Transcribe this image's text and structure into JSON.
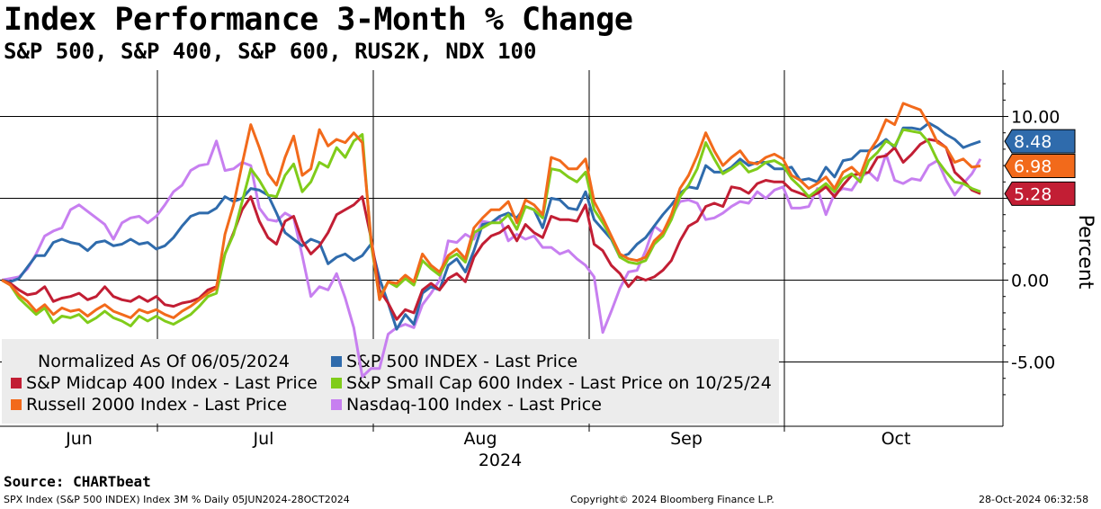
{
  "title": "Index Performance 3-Month % Change",
  "subtitle": "S&P 500, S&P 400, S&P 600, RUS2K, NDX 100",
  "source": "Source: CHARTbeat",
  "footer": {
    "left": "SPX Index (S&P 500 INDEX) Index 3M %  Daily 05JUN2024-28OCT2024",
    "mid": "Copyright© 2024 Bloomberg Finance L.P.",
    "right": "28-Oct-2024 06:32:58"
  },
  "chart_data": {
    "type": "line",
    "title": "Index Performance 3-Month % Change",
    "xlabel": "2024",
    "ylabel": "Percent",
    "ylim": [
      -8.8,
      12.7
    ],
    "yticks": [
      -5,
      0,
      5,
      10
    ],
    "ytick_labels": [
      "-5.00",
      "0.00",
      "",
      "10.00"
    ],
    "xtick_labels": [
      "Jun",
      "Jul",
      "Aug",
      "Sep",
      "Oct"
    ],
    "x_year_label": "2024",
    "grid": true,
    "legend_note": "Normalized As Of 06/05/2024",
    "legend_position": "bottom-left",
    "last_value_labels": [
      {
        "series": "S&P 500 INDEX - Last Price",
        "text": "8.48",
        "color": "#2f6bac"
      },
      {
        "series": "Russell 2000 Index - Last Price",
        "text": "6.98",
        "color": "#f26a1b"
      },
      {
        "series": "S&P Midcap 400 Index - Last Price",
        "text": "5.28",
        "color": "#c21e34"
      }
    ],
    "series": [
      {
        "name": "S&P 500 INDEX - Last Price",
        "color": "#2f6bac",
        "values": [
          0,
          -0.1,
          0.1,
          0.8,
          1.5,
          1.5,
          2.3,
          2.5,
          2.3,
          2.2,
          1.8,
          2.3,
          2.4,
          2.1,
          2.2,
          2.5,
          2.2,
          2.3,
          1.9,
          2.1,
          2.6,
          3.3,
          3.9,
          4.1,
          4.1,
          4.4,
          5.1,
          4.8,
          5.0,
          5.6,
          5.5,
          5.2,
          4.1,
          2.9,
          2.5,
          2.1,
          2.5,
          2.3,
          1.0,
          1.4,
          1.6,
          1.2,
          1.5,
          2.2,
          0.1,
          -1.4,
          -3.0,
          -2.1,
          -2.7,
          -0.8,
          -0.4,
          -0.6,
          0.9,
          1.3,
          0.5,
          1.8,
          3.4,
          3.5,
          3.9,
          4.1,
          3.8,
          4.5,
          4.3,
          3.2,
          5.0,
          4.9,
          4.4,
          4.3,
          5.4,
          3.7,
          3.1,
          2.5,
          1.4,
          1.6,
          2.2,
          2.6,
          3.3,
          4.0,
          4.6,
          5.3,
          5.7,
          5.6,
          7.0,
          6.6,
          6.6,
          6.9,
          7.4,
          7.0,
          7.2,
          7.2,
          6.8,
          6.8,
          6.9,
          6.1,
          6.2,
          6.0,
          6.9,
          6.3,
          7.3,
          7.4,
          7.9,
          7.9,
          8.2,
          8.6,
          8.1,
          9.3,
          9.3,
          9.2,
          9.6,
          9.3,
          8.9,
          8.6,
          8.1,
          8.3,
          8.48
        ]
      },
      {
        "name": "S&P Midcap 400 Index - Last Price",
        "color": "#c21e34",
        "values": [
          0,
          -0.2,
          -0.6,
          -0.9,
          -0.8,
          -0.4,
          -1.3,
          -1.1,
          -1.0,
          -0.8,
          -1.2,
          -1.0,
          -0.4,
          -1.0,
          -1.2,
          -1.3,
          -1.0,
          -1.3,
          -1.0,
          -1.5,
          -1.6,
          -1.4,
          -1.3,
          -1.1,
          -0.6,
          -0.4,
          1.6,
          2.9,
          4.3,
          5.1,
          3.6,
          2.6,
          2.2,
          3.6,
          3.9,
          2.4,
          1.6,
          2.1,
          2.9,
          4.0,
          4.3,
          4.6,
          5.1,
          2.6,
          -0.6,
          -1.4,
          -2.4,
          -1.8,
          -2.0,
          -0.6,
          -0.2,
          -0.6,
          0.1,
          0.4,
          -0.1,
          1.4,
          2.2,
          2.7,
          2.9,
          3.3,
          2.4,
          3.4,
          2.9,
          2.6,
          3.9,
          3.7,
          3.7,
          3.6,
          4.6,
          2.2,
          1.8,
          0.9,
          0.4,
          -0.4,
          0.2,
          0.0,
          0.2,
          0.6,
          1.2,
          2.4,
          3.3,
          3.6,
          4.5,
          4.7,
          4.5,
          5.7,
          5.6,
          5.3,
          5.9,
          6.1,
          6.0,
          6.0,
          5.5,
          5.3,
          5.1,
          5.3,
          5.7,
          5.1,
          5.8,
          6.4,
          6.5,
          6.6,
          7.5,
          7.6,
          8.1,
          7.2,
          7.7,
          8.3,
          8.6,
          8.5,
          8.1,
          6.6,
          6.1,
          5.5,
          5.28
        ]
      },
      {
        "name": "Russell 2000 Index - Last Price",
        "color": "#f26a1b",
        "values": [
          0,
          -0.3,
          -0.9,
          -1.3,
          -1.9,
          -1.5,
          -2.1,
          -1.7,
          -1.9,
          -1.8,
          -2.2,
          -1.8,
          -1.5,
          -1.9,
          -2.1,
          -2.3,
          -1.8,
          -2.0,
          -1.8,
          -2.1,
          -2.3,
          -1.9,
          -1.6,
          -1.2,
          -0.8,
          -0.5,
          2.8,
          4.6,
          7.1,
          9.5,
          8.1,
          6.5,
          5.8,
          7.5,
          8.8,
          6.4,
          6.8,
          9.2,
          8.2,
          8.6,
          8.4,
          9.0,
          8.4,
          2.6,
          -1.2,
          -0.1,
          -0.2,
          0.3,
          -0.1,
          1.6,
          0.9,
          0.5,
          1.5,
          1.9,
          1.3,
          3.2,
          3.8,
          4.3,
          4.3,
          4.8,
          3.5,
          4.9,
          4.6,
          4.0,
          7.5,
          7.3,
          6.8,
          6.8,
          7.4,
          4.8,
          3.8,
          2.7,
          1.6,
          1.3,
          1.2,
          1.4,
          2.4,
          2.9,
          4.0,
          5.6,
          6.4,
          7.6,
          9.0,
          7.9,
          7.0,
          7.5,
          7.9,
          7.2,
          7.1,
          7.5,
          7.7,
          7.4,
          6.4,
          6.1,
          5.6,
          5.9,
          6.3,
          5.6,
          6.6,
          6.9,
          6.4,
          7.8,
          8.6,
          9.8,
          9.5,
          10.8,
          10.6,
          10.4,
          9.5,
          8.4,
          8.1,
          7.2,
          7.4,
          6.9,
          6.98
        ]
      },
      {
        "name": "S&P Small Cap 600 Index - Last Price on 10/25/24",
        "color": "#80cc1a",
        "values": [
          0,
          -0.3,
          -1.1,
          -1.6,
          -2.1,
          -1.7,
          -2.6,
          -2.2,
          -2.3,
          -2.1,
          -2.6,
          -2.3,
          -1.9,
          -2.3,
          -2.5,
          -2.8,
          -2.2,
          -2.5,
          -2.2,
          -2.5,
          -2.7,
          -2.4,
          -2.1,
          -1.6,
          -1.0,
          -0.8,
          1.6,
          2.8,
          4.8,
          6.8,
          6.1,
          5.2,
          5.1,
          6.4,
          7.1,
          5.4,
          6.0,
          7.2,
          6.9,
          8.1,
          7.5,
          8.5,
          8.9,
          2.3,
          -1.1,
          -0.1,
          -0.4,
          0.1,
          -0.3,
          1.2,
          0.7,
          0.3,
          1.3,
          1.6,
          1.1,
          2.9,
          3.2,
          3.5,
          3.5,
          4.0,
          3.1,
          4.5,
          4.3,
          3.8,
          6.8,
          6.7,
          6.3,
          6.0,
          6.6,
          4.3,
          3.5,
          2.6,
          1.4,
          1.1,
          1.0,
          1.2,
          2.2,
          2.7,
          3.7,
          5.1,
          5.8,
          6.8,
          8.4,
          7.4,
          6.5,
          6.8,
          7.2,
          6.6,
          6.8,
          7.2,
          7.3,
          7.0,
          6.2,
          5.7,
          5.1,
          5.5,
          5.9,
          5.4,
          6.2,
          6.5,
          6.0,
          7.3,
          7.8,
          8.5,
          8.2,
          9.2,
          9.1,
          9.0,
          8.4,
          7.3,
          6.6,
          6.0,
          5.9,
          5.6,
          5.4
        ]
      },
      {
        "name": "Nasdaq-100 Index - Last Price",
        "color": "#c77ff0",
        "values": [
          0,
          0.1,
          0.2,
          0.7,
          1.6,
          2.7,
          3.0,
          3.2,
          4.3,
          4.6,
          4.2,
          3.8,
          3.4,
          2.5,
          3.5,
          3.8,
          3.9,
          3.5,
          3.9,
          4.6,
          5.4,
          5.8,
          6.7,
          7.0,
          7.1,
          8.5,
          6.7,
          6.8,
          7.2,
          7.0,
          4.4,
          3.7,
          3.6,
          4.1,
          3.8,
          1.5,
          -1.0,
          -0.4,
          -0.6,
          0.4,
          -1.1,
          -2.9,
          -5.9,
          -5.4,
          -5.4,
          -3.3,
          -2.9,
          -2.7,
          -2.9,
          -1.5,
          -0.8,
          0.0,
          2.4,
          2.3,
          2.8,
          2.5,
          3.6,
          3.5,
          3.8,
          2.4,
          2.8,
          2.5,
          2.7,
          2.0,
          2.0,
          1.6,
          1.8,
          1.3,
          0.9,
          0.2,
          -3.2,
          -1.9,
          -0.5,
          0.5,
          0.6,
          1.8,
          3.3,
          2.9,
          3.9,
          4.8,
          4.9,
          4.7,
          3.7,
          3.8,
          4.1,
          4.5,
          4.8,
          4.7,
          5.4,
          5.0,
          5.5,
          5.7,
          4.4,
          4.4,
          4.5,
          5.6,
          4.0,
          5.3,
          5.6,
          5.5,
          6.3,
          6.6,
          6.1,
          7.7,
          6.1,
          5.9,
          6.2,
          6.1,
          7.0,
          7.3,
          6.1,
          5.2,
          5.9,
          6.5,
          7.4
        ]
      }
    ],
    "legend": [
      {
        "text": "Normalized As Of 06/05/2024",
        "marker": false
      },
      {
        "text": "S&P 500 INDEX - Last Price",
        "color": "#2f6bac",
        "marker": true
      },
      {
        "text": "S&P Midcap 400 Index - Last Price",
        "color": "#c21e34",
        "marker": true
      },
      {
        "text": "S&P Small Cap 600 Index - Last Price on 10/25/24",
        "color": "#80cc1a",
        "marker": true
      },
      {
        "text": "Russell 2000 Index - Last Price",
        "color": "#f26a1b",
        "marker": true
      },
      {
        "text": "Nasdaq-100 Index - Last Price",
        "color": "#c77ff0",
        "marker": true
      }
    ]
  }
}
